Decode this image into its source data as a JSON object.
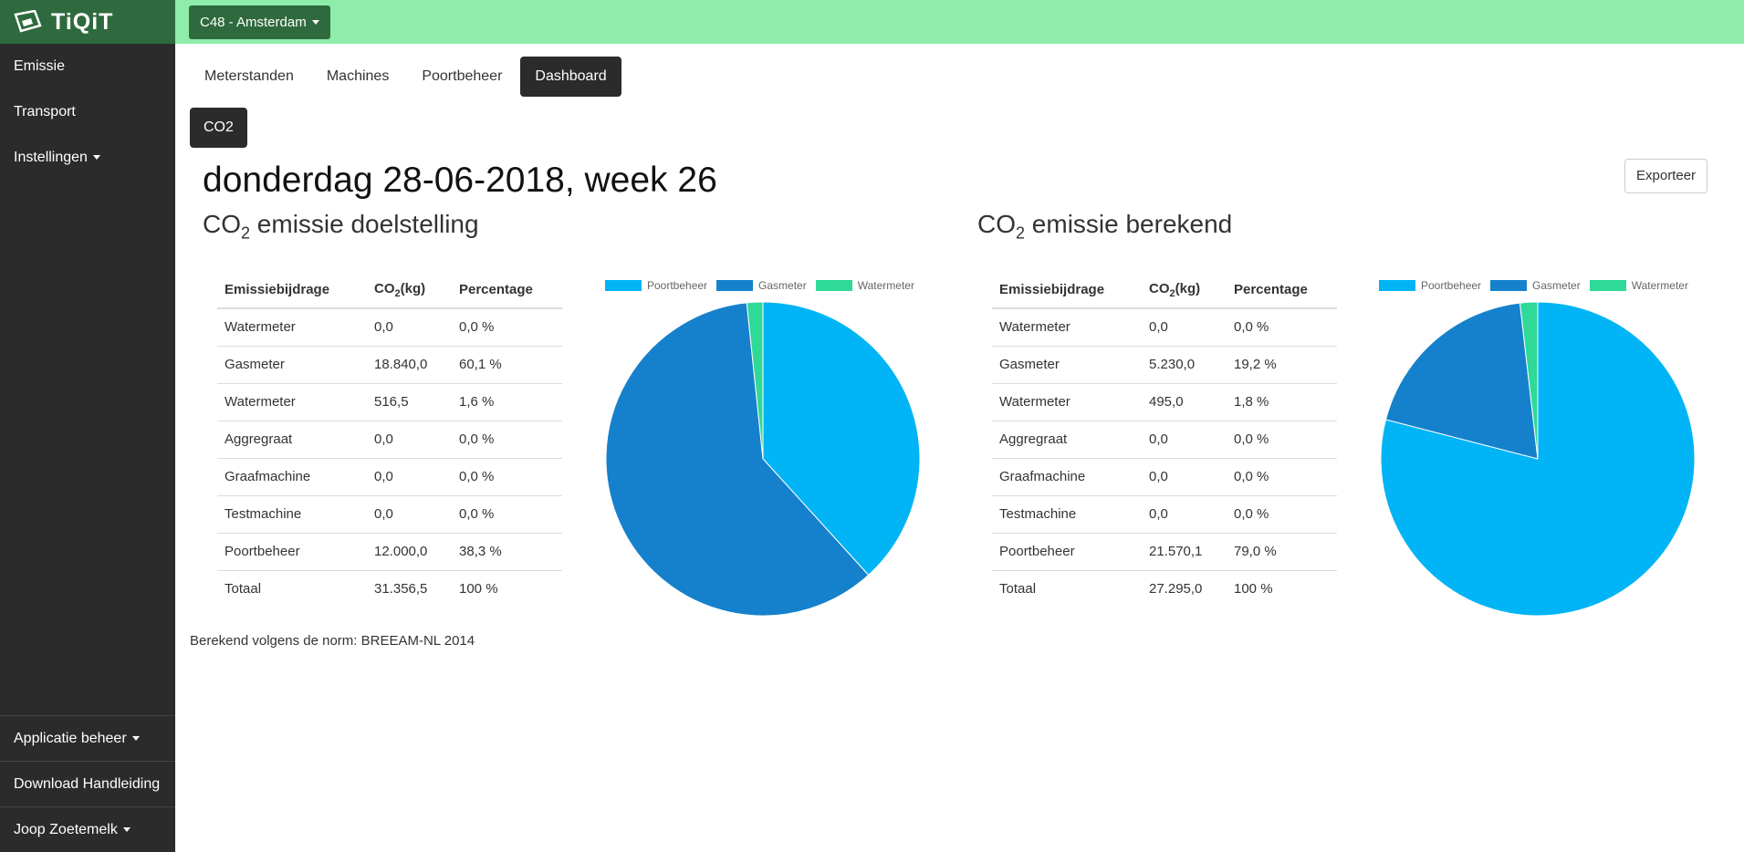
{
  "app": {
    "name": "TiQiT"
  },
  "sidebar": {
    "items": [
      {
        "label": "Emissie",
        "dropdown": false
      },
      {
        "label": "Transport",
        "dropdown": false
      },
      {
        "label": "Instellingen",
        "dropdown": true
      }
    ],
    "bottom_items": [
      {
        "label": "Applicatie beheer",
        "dropdown": true
      },
      {
        "label": "Download Handleiding",
        "dropdown": false
      },
      {
        "label": "Joop Zoetemelk",
        "dropdown": true
      }
    ]
  },
  "topbar": {
    "location_label": "C48 - Amsterdam"
  },
  "tabs": [
    "Meterstanden",
    "Machines",
    "Poortbeheer",
    "Dashboard"
  ],
  "active_tab": "Dashboard",
  "subtab": "CO2",
  "page_title": "donderdag 28-06-2018, week 26",
  "export_label": "Exporteer",
  "footnote": "Berekend volgens de norm: BREEAM-NL 2014",
  "colors": {
    "Poortbeheer": "#00b4f5",
    "Gasmeter": "#1581cc",
    "Watermeter": "#2fd998",
    "sidebar": "#2b2b2b",
    "topbar": "#8fedab",
    "brand": "#2e6a3d"
  },
  "sections": [
    {
      "title_prefix": "CO",
      "title_sub": "2",
      "title_suffix": " emissie doelstelling",
      "table": {
        "headers": [
          "Emissiebijdrage",
          "CO",
          "2",
          "(kg)",
          "Percentage"
        ],
        "rows": [
          [
            "Watermeter",
            "0,0",
            "0,0 %"
          ],
          [
            "Gasmeter",
            "18.840,0",
            "60,1 %"
          ],
          [
            "Watermeter",
            "516,5",
            "1,6 %"
          ],
          [
            "Aggregraat",
            "0,0",
            "0,0 %"
          ],
          [
            "Graafmachine",
            "0,0",
            "0,0 %"
          ],
          [
            "Testmachine",
            "0,0",
            "0,0 %"
          ],
          [
            "Poortbeheer",
            "12.000,0",
            "38,3 %"
          ],
          [
            "Totaal",
            "31.356,5",
            "100 %"
          ]
        ]
      }
    },
    {
      "title_prefix": "CO",
      "title_sub": "2",
      "title_suffix": " emissie berekend",
      "table": {
        "headers": [
          "Emissiebijdrage",
          "CO",
          "2",
          "(kg)",
          "Percentage"
        ],
        "rows": [
          [
            "Watermeter",
            "0,0",
            "0,0 %"
          ],
          [
            "Gasmeter",
            "5.230,0",
            "19,2 %"
          ],
          [
            "Watermeter",
            "495,0",
            "1,8 %"
          ],
          [
            "Aggregraat",
            "0,0",
            "0,0 %"
          ],
          [
            "Graafmachine",
            "0,0",
            "0,0 %"
          ],
          [
            "Testmachine",
            "0,0",
            "0,0 %"
          ],
          [
            "Poortbeheer",
            "21.570,1",
            "79,0 %"
          ],
          [
            "Totaal",
            "27.295,0",
            "100 %"
          ]
        ]
      }
    }
  ],
  "chart_data": [
    {
      "type": "pie",
      "legend_position": "top",
      "categories": [
        "Poortbeheer",
        "Gasmeter",
        "Watermeter"
      ],
      "values": [
        12000.0,
        18840.0,
        516.5
      ]
    },
    {
      "type": "pie",
      "legend_position": "top",
      "categories": [
        "Poortbeheer",
        "Gasmeter",
        "Watermeter"
      ],
      "values": [
        21570.1,
        5230.0,
        495.0
      ]
    }
  ]
}
